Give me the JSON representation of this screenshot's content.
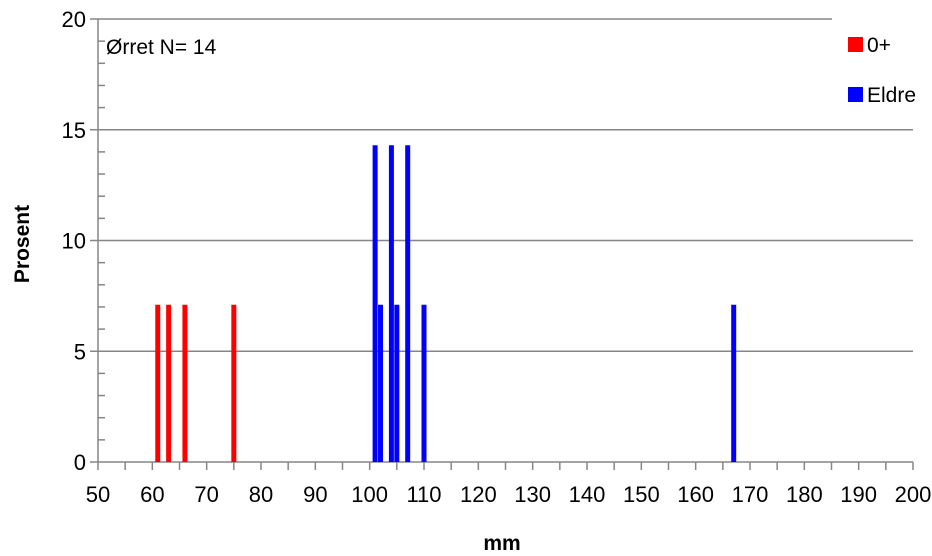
{
  "chart_data": {
    "type": "bar",
    "annotation": "Ørret N= 14",
    "xlabel": "mm",
    "ylabel": "Prosent",
    "xlim": [
      50,
      200
    ],
    "ylim": [
      0,
      20
    ],
    "x_ticks": [
      "50",
      "60",
      "70",
      "80",
      "90",
      "100",
      "110",
      "120",
      "130",
      "140",
      "150",
      "160",
      "170",
      "180",
      "190",
      "200"
    ],
    "y_ticks": [
      "0",
      "5",
      "10",
      "15",
      "20"
    ],
    "grid": "horizontal",
    "legend_position": "top-right",
    "series": [
      {
        "name": "0+",
        "color": "#ff0000",
        "points": [
          {
            "x": 61,
            "y": 7.1
          },
          {
            "x": 63,
            "y": 7.1
          },
          {
            "x": 66,
            "y": 7.1
          },
          {
            "x": 75,
            "y": 7.1
          }
        ]
      },
      {
        "name": "Eldre",
        "color": "#0000ff",
        "points": [
          {
            "x": 101,
            "y": 14.3
          },
          {
            "x": 102,
            "y": 7.1
          },
          {
            "x": 104,
            "y": 14.3
          },
          {
            "x": 105,
            "y": 7.1
          },
          {
            "x": 107,
            "y": 14.3
          },
          {
            "x": 110,
            "y": 7.1
          },
          {
            "x": 167,
            "y": 7.1
          }
        ]
      }
    ]
  }
}
